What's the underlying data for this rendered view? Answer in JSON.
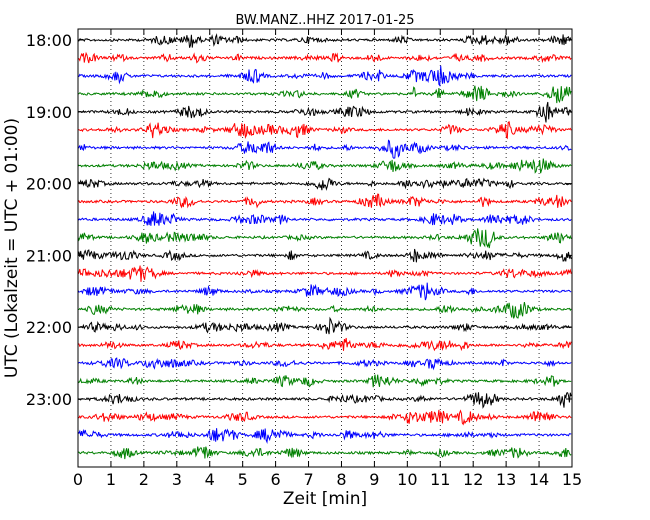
{
  "chart_data": {
    "type": "line",
    "title": "BW.MANZ..HHZ 2017-01-25",
    "xlabel": "Zeit  [min]",
    "ylabel": "UTC (Lokalzeit = UTC + 01:00)",
    "xlim": [
      0,
      15
    ],
    "x_ticks": [
      "0",
      "1",
      "2",
      "3",
      "4",
      "5",
      "6",
      "7",
      "8",
      "9",
      "10",
      "11",
      "12",
      "13",
      "14",
      "15"
    ],
    "y_ticks": [
      "18:00",
      "19:00",
      "20:00",
      "21:00",
      "22:00",
      "23:00"
    ],
    "grid": "vertical-dotted",
    "line_interval_minutes": 15,
    "start_time": "18:00",
    "trace_colors": [
      "#000000",
      "#ff0000",
      "#0000ff",
      "#008000"
    ],
    "trace_count": 24
  }
}
